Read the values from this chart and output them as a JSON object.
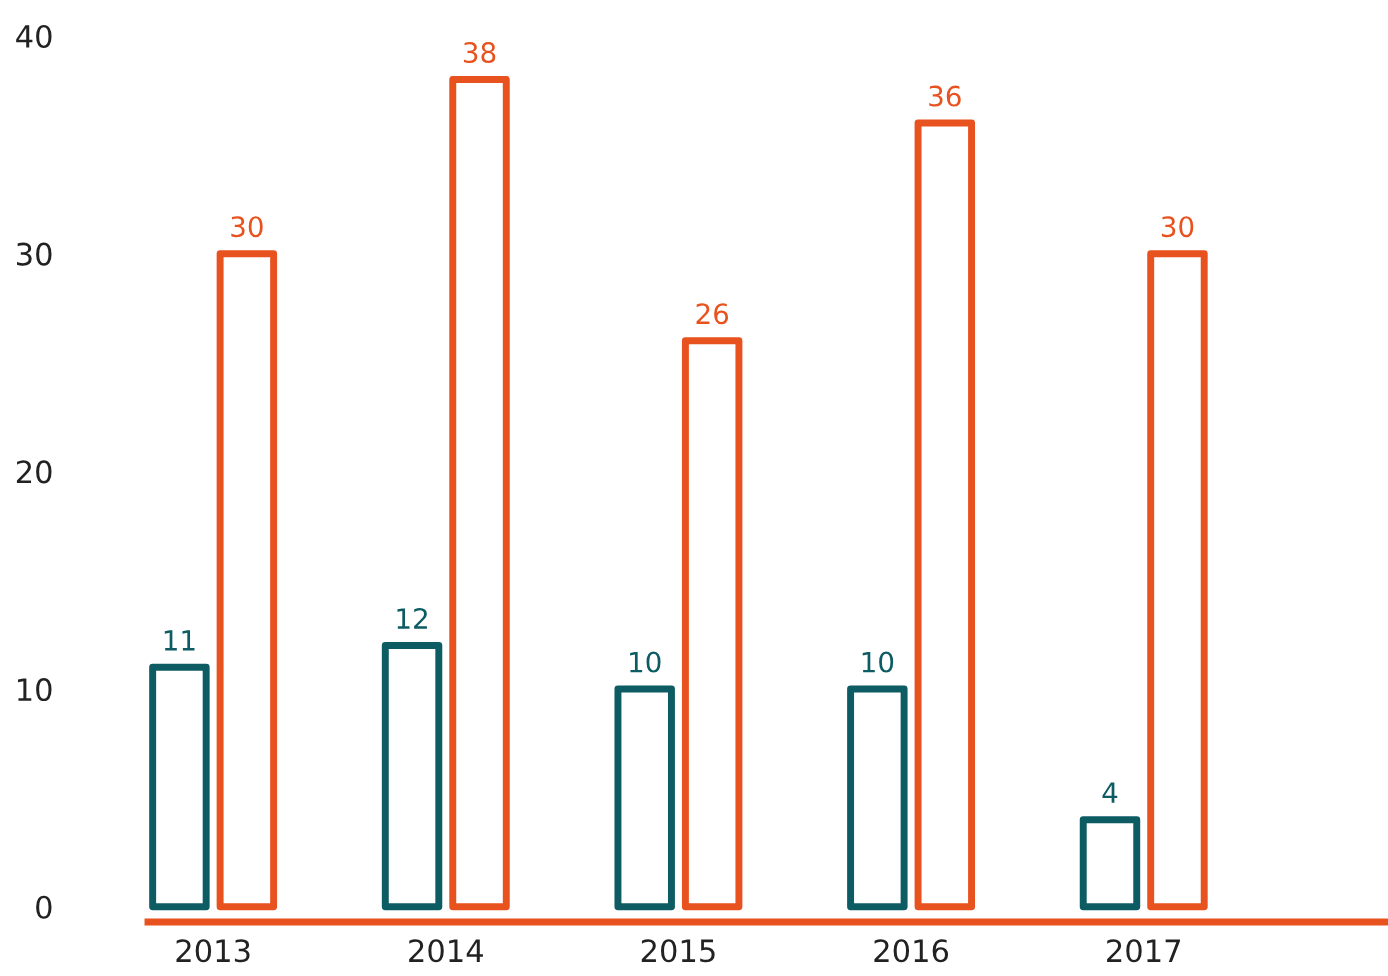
{
  "chart_data": {
    "type": "bar",
    "categories": [
      "2013",
      "2014",
      "2015",
      "2016",
      "2017"
    ],
    "series": [
      {
        "color": "#0d5c63",
        "values": [
          11,
          12,
          10,
          10,
          4
        ]
      },
      {
        "color": "#e8521e",
        "values": [
          30,
          38,
          26,
          36,
          30
        ]
      }
    ],
    "ylim": [
      -0.7,
      40
    ],
    "yticks": [
      0,
      10,
      20,
      30,
      40
    ],
    "grid": false,
    "legend": false,
    "data_labels": true
  }
}
